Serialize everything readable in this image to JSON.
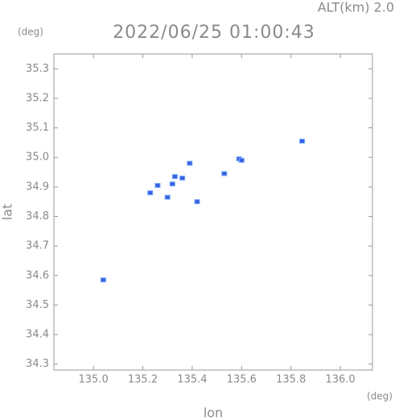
{
  "chart_data": {
    "type": "scatter",
    "title": "2022/06/25 01:00:43",
    "subtitle": "ALT(km) 2.0",
    "x_label": "lon",
    "y_label": "lat",
    "x_unit": "(deg)",
    "y_unit": "(deg)",
    "x": [
      135.845,
      135.59,
      135.6,
      135.53,
      135.39,
      135.33,
      135.36,
      135.26,
      135.3,
      135.23,
      135.42,
      135.04,
      135.32
    ],
    "y": [
      35.055,
      34.995,
      34.99,
      34.945,
      34.98,
      34.935,
      34.93,
      34.905,
      34.865,
      34.88,
      34.85,
      34.585,
      34.91
    ],
    "color": "#3b5fe0",
    "xlim": [
      134.84,
      136.13
    ],
    "ylim": [
      34.28,
      35.35
    ],
    "xticks": [
      {
        "value": 135,
        "label": "135.0"
      },
      135.2,
      135.4,
      135.6,
      135.8,
      {
        "value": 136,
        "label": "136.0"
      }
    ],
    "yticks": [
      34.3,
      34.4,
      34.5,
      34.6,
      34.7,
      34.8,
      34.9,
      {
        "value": 35,
        "label": "35.0"
      },
      35.1,
      35.2,
      35.3
    ]
  }
}
